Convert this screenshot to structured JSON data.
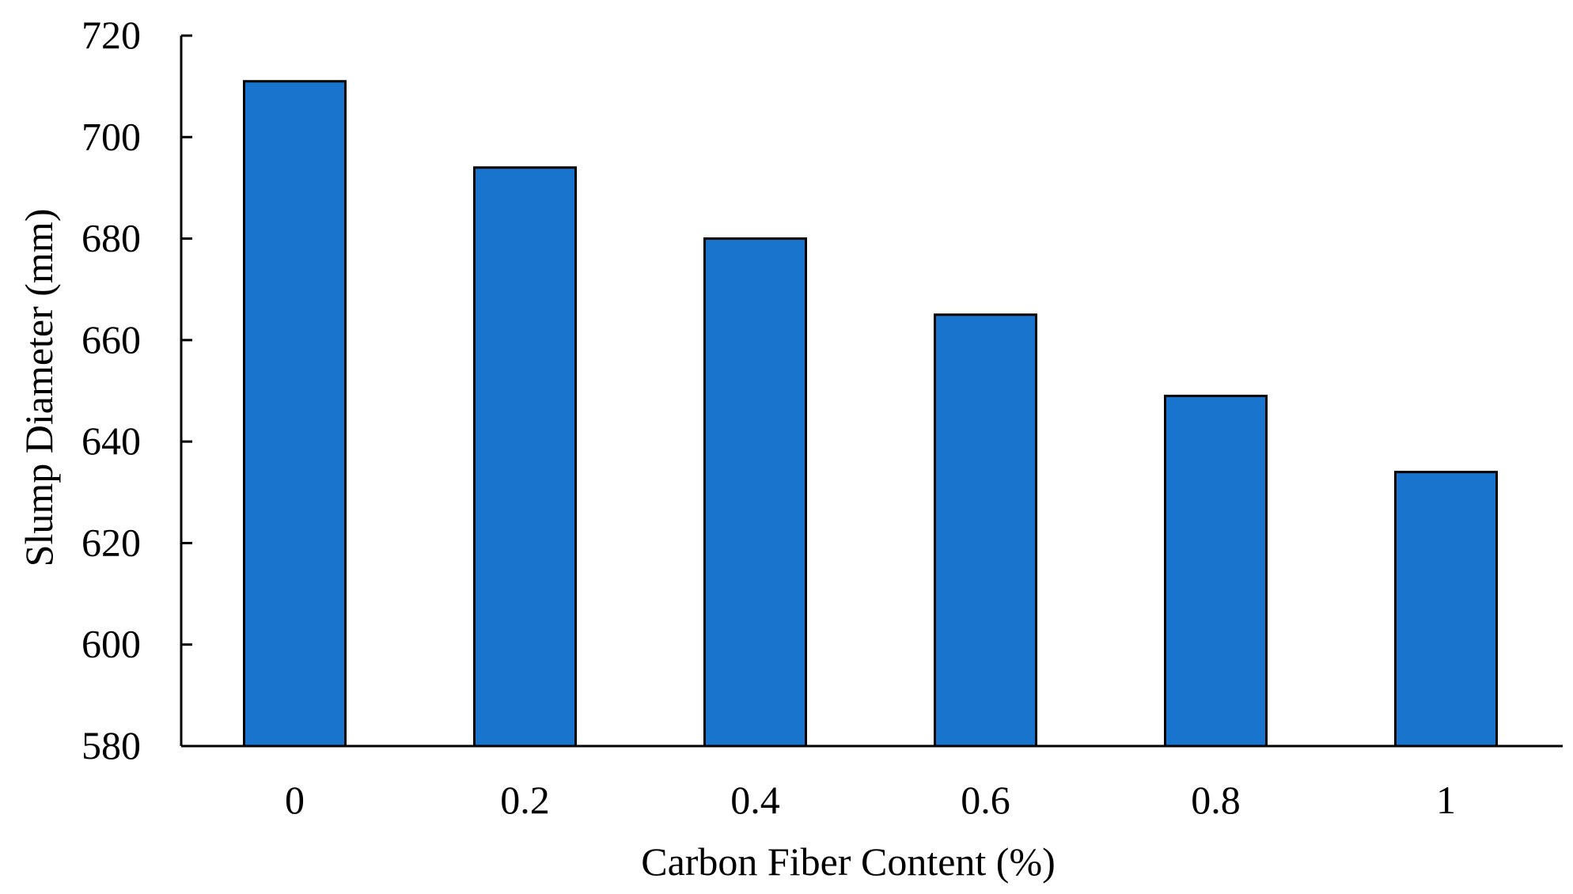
{
  "chart_data": {
    "type": "bar",
    "categories": [
      "0",
      "0.2",
      "0.4",
      "0.6",
      "0.8",
      "1"
    ],
    "values": [
      711,
      694,
      680,
      665,
      649,
      634
    ],
    "xlabel": "Carbon Fiber Content (%)",
    "ylabel": "Slump Diameter (mm)",
    "ylim": [
      580,
      720
    ],
    "yticks": [
      580,
      600,
      620,
      640,
      660,
      680,
      700,
      720
    ],
    "ytick_labels": [
      "580",
      "600",
      "620",
      "640",
      "660",
      "680",
      "700",
      "720"
    ],
    "grid": false,
    "legend": "none",
    "colors": {
      "bar_fill": "#1874CD",
      "bar_stroke": "#000000",
      "axis": "#000000"
    }
  }
}
